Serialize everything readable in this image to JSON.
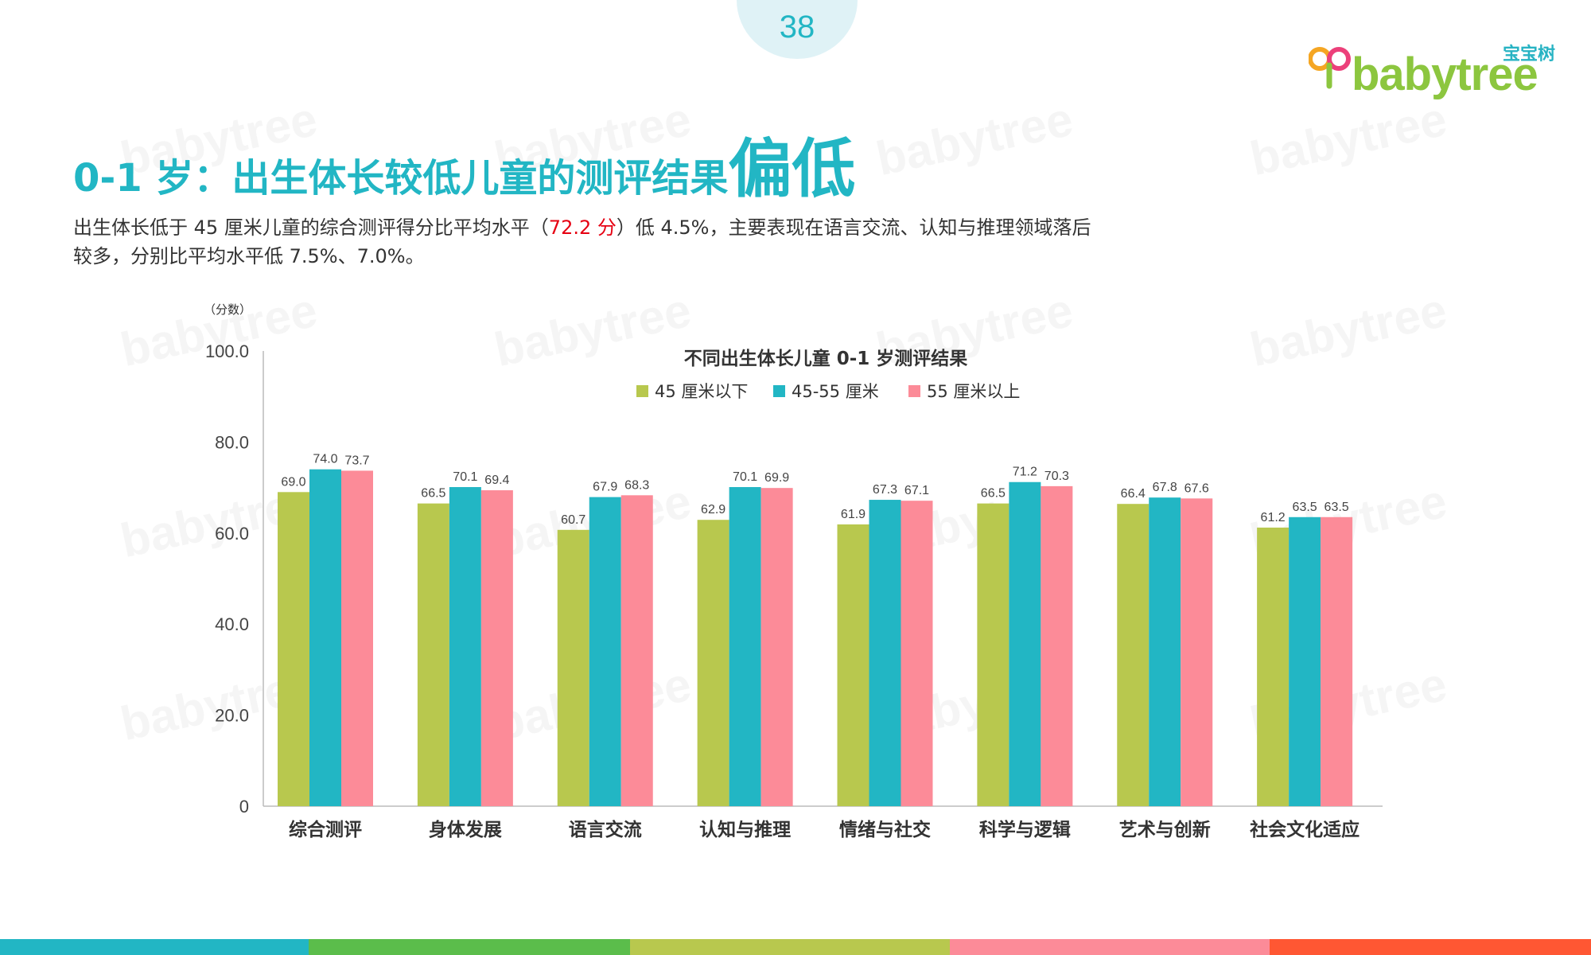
{
  "page": {
    "number": "38"
  },
  "logo": {
    "cn": "宝宝树",
    "en": "babytree"
  },
  "title": {
    "main": "0-1 岁：出生体长较低儿童的测评结果",
    "emph": "偏低"
  },
  "description": {
    "part1": "出生体长低于 45 厘米儿童的综合测评得分比平均水平（",
    "highlight": "72.2 分",
    "part2": "）低 4.5%，主要表现在语言交流、认知与推理领域落后较多，分别比平均水平低 7.5%、7.0%。"
  },
  "colors": {
    "accent": "#22b6c4",
    "series": [
      "#b8c84e",
      "#22b6c4",
      "#fc8b98"
    ],
    "stripes": [
      "#22b6c4",
      "#5bbd4b",
      "#b8c84e",
      "#fc8b98",
      "#ff5733"
    ]
  },
  "chart_data": {
    "type": "bar",
    "title": "不同出生体长儿童 0-1 岁测评结果",
    "ylabel": "（分数）",
    "ylim": [
      0,
      100
    ],
    "yticks": [
      "0",
      "20.0",
      "40.0",
      "60.0",
      "80.0",
      "100.0"
    ],
    "ytick_values": [
      0,
      20,
      40,
      60,
      80,
      100
    ],
    "legend_position": "top-center",
    "categories": [
      "综合测评",
      "身体发展",
      "语言交流",
      "认知与推理",
      "情绪与社交",
      "科学与逻辑",
      "艺术与创新",
      "社会文化适应"
    ],
    "series": [
      {
        "name": "45 厘米以下",
        "values": [
          69.0,
          66.5,
          60.7,
          62.9,
          61.9,
          66.5,
          66.4,
          61.2
        ],
        "labels": [
          "69.0",
          "66.5",
          "60.7",
          "62.9",
          "61.9",
          "66.5",
          "66.4",
          "61.2"
        ]
      },
      {
        "name": "45-55 厘米",
        "values": [
          74.0,
          70.1,
          67.9,
          70.1,
          67.3,
          71.2,
          67.8,
          63.5
        ],
        "labels": [
          "74.0",
          "70.1",
          "67.9",
          "70.1",
          "67.3",
          "71.2",
          "67.8",
          "63.5"
        ]
      },
      {
        "name": "55 厘米以上",
        "values": [
          73.7,
          69.4,
          68.3,
          69.9,
          67.1,
          70.3,
          67.6,
          63.5
        ],
        "labels": [
          "73.7",
          "69.4",
          "68.3",
          "69.9",
          "67.1",
          "70.3",
          "67.6",
          "63.5"
        ]
      }
    ]
  }
}
